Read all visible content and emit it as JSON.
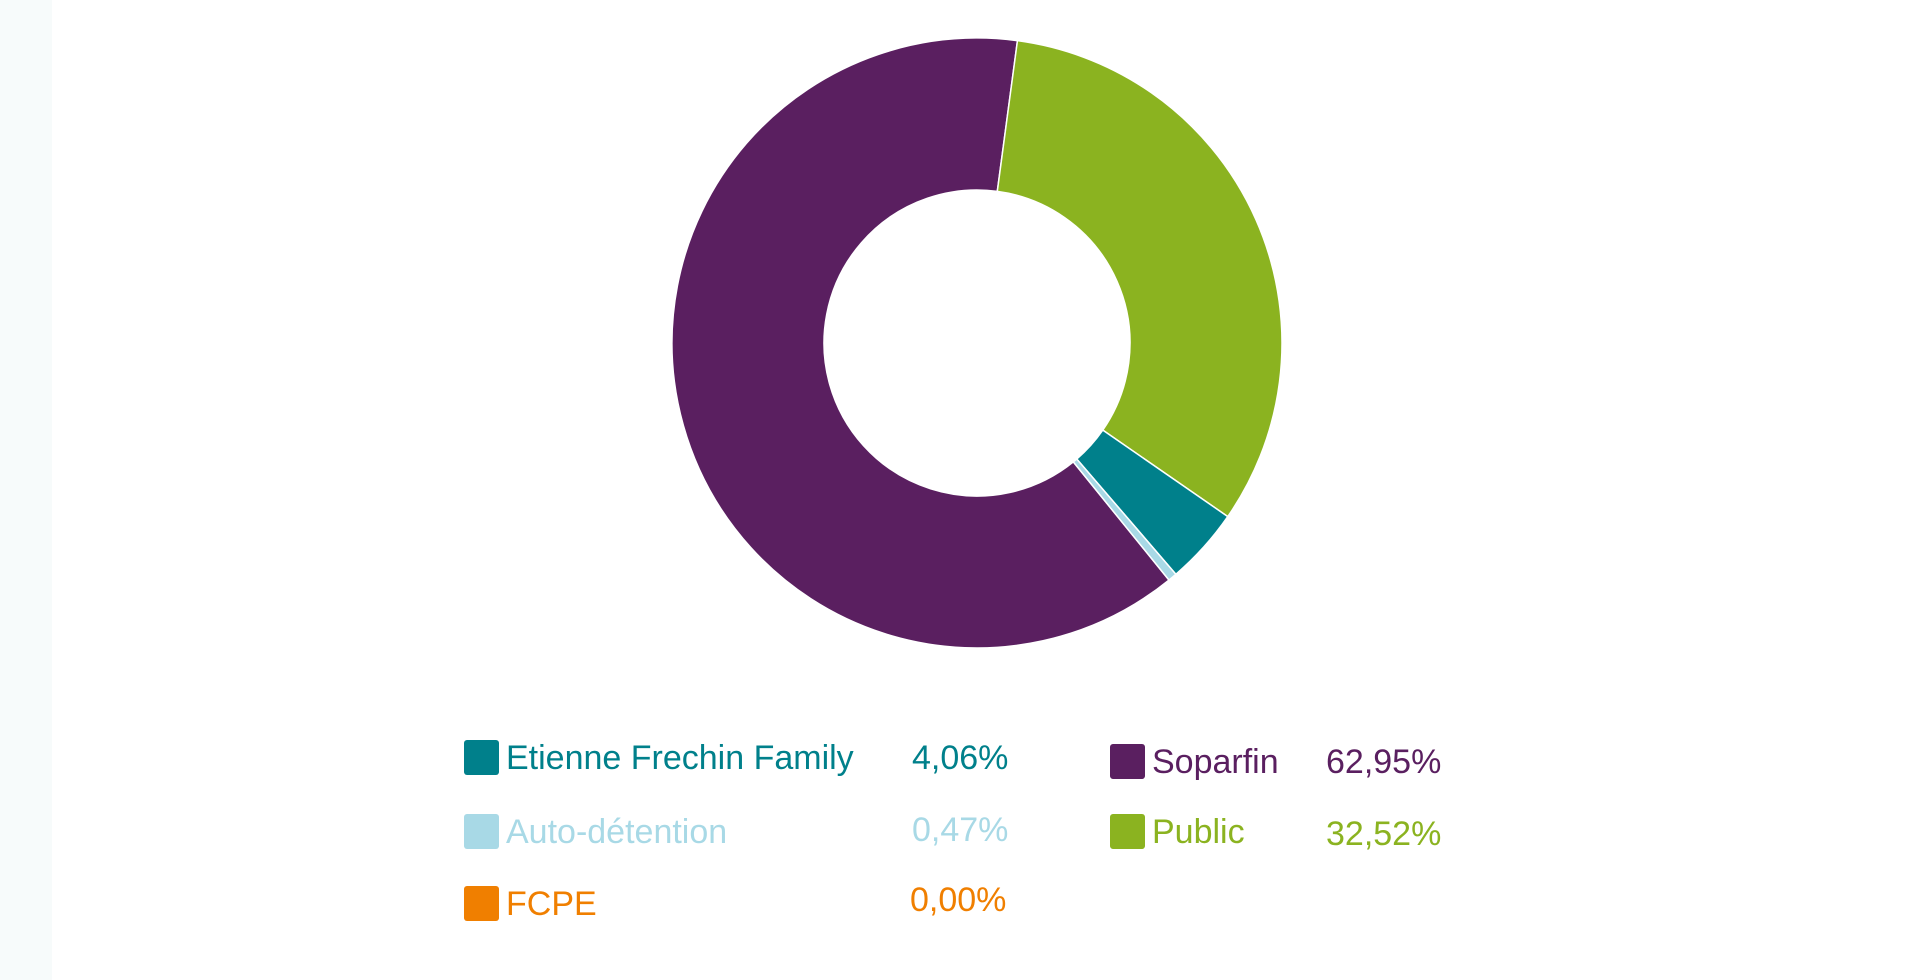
{
  "chart_data": {
    "type": "pie",
    "donut": true,
    "slices": [
      {
        "label": "Soparfin",
        "value": 62.95,
        "display": "62,95%",
        "color": "#5a1f60"
      },
      {
        "label": "Public",
        "value": 32.52,
        "display": "32,52%",
        "color": "#8bb320"
      },
      {
        "label": "Etienne Frechin Family",
        "value": 4.06,
        "display": "4,06%",
        "color": "#00808b"
      },
      {
        "label": "Auto-détention",
        "value": 0.47,
        "display": "0,47%",
        "color": "#a8d9e6"
      },
      {
        "label": "FCPE",
        "value": 0.0,
        "display": "0,00%",
        "color": "#f07f00"
      }
    ],
    "legend": {
      "placement": "bottom",
      "left_column": [
        "Etienne Frechin Family",
        "Auto-détention",
        "FCPE"
      ],
      "right_column": [
        "Soparfin",
        "Public"
      ]
    }
  }
}
